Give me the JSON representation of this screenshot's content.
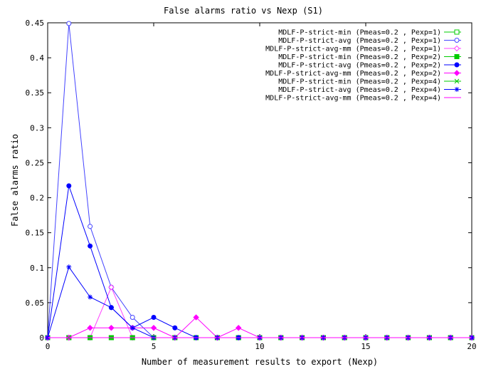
{
  "chart_data": {
    "type": "line",
    "title": "False alarms ratio vs Nexp (S1)",
    "xlabel": "Number of measurement results to export (Nexp)",
    "ylabel": "False alarms ratio",
    "xlim": [
      0,
      20
    ],
    "ylim": [
      0,
      0.45
    ],
    "x_ticks": [
      "0",
      "5",
      "10",
      "15",
      "20"
    ],
    "y_ticks": [
      "0",
      "0.05",
      "0.1",
      "0.15",
      "0.2",
      "0.25",
      "0.3",
      "0.35",
      "0.4",
      "0.45"
    ],
    "grid": false,
    "legend_position": "top-right",
    "series": [
      {
        "name": "MDLF-P-strict-min (Pmeas=0.2 , Pexp=1)",
        "color": "#00cc00",
        "marker": "square-open",
        "x": [
          0,
          1,
          2,
          3,
          4,
          5,
          6,
          7,
          8,
          9,
          10,
          11,
          12,
          13,
          14,
          15,
          16,
          17,
          18,
          19,
          20
        ],
        "y": [
          0,
          0,
          0,
          0,
          0,
          0,
          0,
          0,
          0,
          0,
          0,
          0,
          0,
          0,
          0,
          0,
          0,
          0,
          0,
          0,
          0
        ]
      },
      {
        "name": "MDLF-P-strict-avg (Pmeas=0.2 , Pexp=1)",
        "color": "#4444ff",
        "marker": "circle-open",
        "x": [
          0,
          1,
          2,
          3,
          4,
          5,
          6,
          7,
          8,
          9,
          10,
          11,
          12,
          13,
          14,
          15,
          16,
          17,
          18,
          19,
          20
        ],
        "y": [
          0,
          0.449,
          0.159,
          0.072,
          0.029,
          0,
          0,
          0,
          0,
          0,
          0,
          0,
          0,
          0,
          0,
          0,
          0,
          0,
          0,
          0,
          0
        ]
      },
      {
        "name": "MDLF-P-strict-avg-mm (Pmeas=0.2 , Pexp=1)",
        "color": "#ff44ff",
        "marker": "diamond-open",
        "x": [
          0,
          1,
          2,
          3,
          4,
          5,
          6,
          7,
          8,
          9,
          10,
          11,
          12,
          13,
          14,
          15,
          16,
          17,
          18,
          19,
          20
        ],
        "y": [
          0,
          0,
          0,
          0.072,
          0,
          0,
          0,
          0,
          0,
          0,
          0,
          0,
          0,
          0,
          0,
          0,
          0,
          0,
          0,
          0,
          0
        ]
      },
      {
        "name": "MDLF-P-strict-min (Pmeas=0.2 , Pexp=2)",
        "color": "#00cc00",
        "marker": "square-filled",
        "x": [
          0,
          1,
          2,
          3,
          4,
          5,
          6,
          7,
          8,
          9,
          10,
          11,
          12,
          13,
          14,
          15,
          16,
          17,
          18,
          19,
          20
        ],
        "y": [
          0,
          0,
          0,
          0,
          0,
          0,
          0,
          0,
          0,
          0,
          0,
          0,
          0,
          0,
          0,
          0,
          0,
          0,
          0,
          0,
          0
        ]
      },
      {
        "name": "MDLF-P-strict-avg (Pmeas=0.2 , Pexp=2)",
        "color": "#0000ff",
        "marker": "circle-filled",
        "x": [
          0,
          1,
          2,
          3,
          4,
          5,
          6,
          7,
          8,
          9,
          10,
          11,
          12,
          13,
          14,
          15,
          16,
          17,
          18,
          19,
          20
        ],
        "y": [
          0,
          0.217,
          0.131,
          0.043,
          0.014,
          0.029,
          0.014,
          0,
          0,
          0,
          0,
          0,
          0,
          0,
          0,
          0,
          0,
          0,
          0,
          0,
          0
        ]
      },
      {
        "name": "MDLF-P-strict-avg-mm (Pmeas=0.2 , Pexp=2)",
        "color": "#ff00ff",
        "marker": "diamond-filled",
        "x": [
          0,
          1,
          2,
          3,
          4,
          5,
          6,
          7,
          8,
          9,
          10,
          11,
          12,
          13,
          14,
          15,
          16,
          17,
          18,
          19,
          20
        ],
        "y": [
          0,
          0,
          0.014,
          0.014,
          0.014,
          0.014,
          0,
          0.029,
          0,
          0.014,
          0,
          0,
          0,
          0,
          0,
          0,
          0,
          0,
          0,
          0,
          0
        ]
      },
      {
        "name": "MDLF-P-strict-min (Pmeas=0.2 , Pexp=4)",
        "color": "#00cc00",
        "marker": "x",
        "x": [
          0,
          1,
          2,
          3,
          4,
          5,
          6,
          7,
          8,
          9,
          10,
          11,
          12,
          13,
          14,
          15,
          16,
          17,
          18,
          19,
          20
        ],
        "y": [
          0,
          0,
          0,
          0,
          0,
          0,
          0,
          0,
          0,
          0,
          0,
          0,
          0,
          0,
          0,
          0,
          0,
          0,
          0,
          0,
          0
        ]
      },
      {
        "name": "MDLF-P-strict-avg (Pmeas=0.2 , Pexp=4)",
        "color": "#0000ff",
        "marker": "star",
        "x": [
          0,
          1,
          2,
          3,
          4,
          5,
          6,
          7,
          8,
          9,
          10,
          11,
          12,
          13,
          14,
          15,
          16,
          17,
          18,
          19,
          20
        ],
        "y": [
          0,
          0.101,
          0.058,
          0.043,
          0.014,
          0,
          0,
          0,
          0,
          0,
          0,
          0,
          0,
          0,
          0,
          0,
          0,
          0,
          0,
          0,
          0
        ]
      },
      {
        "name": "MDLF-P-strict-avg-mm (Pmeas=0.2 , Pexp=4)",
        "color": "#ff00ff",
        "marker": "none",
        "x": [
          0,
          1,
          2,
          3,
          4,
          5,
          6,
          7,
          8,
          9,
          10,
          11,
          12,
          13,
          14,
          15,
          16,
          17,
          18,
          19,
          20
        ],
        "y": [
          0,
          0,
          0,
          0,
          0,
          0,
          0,
          0,
          0,
          0,
          0,
          0,
          0,
          0,
          0,
          0,
          0,
          0,
          0,
          0,
          0
        ]
      }
    ]
  }
}
